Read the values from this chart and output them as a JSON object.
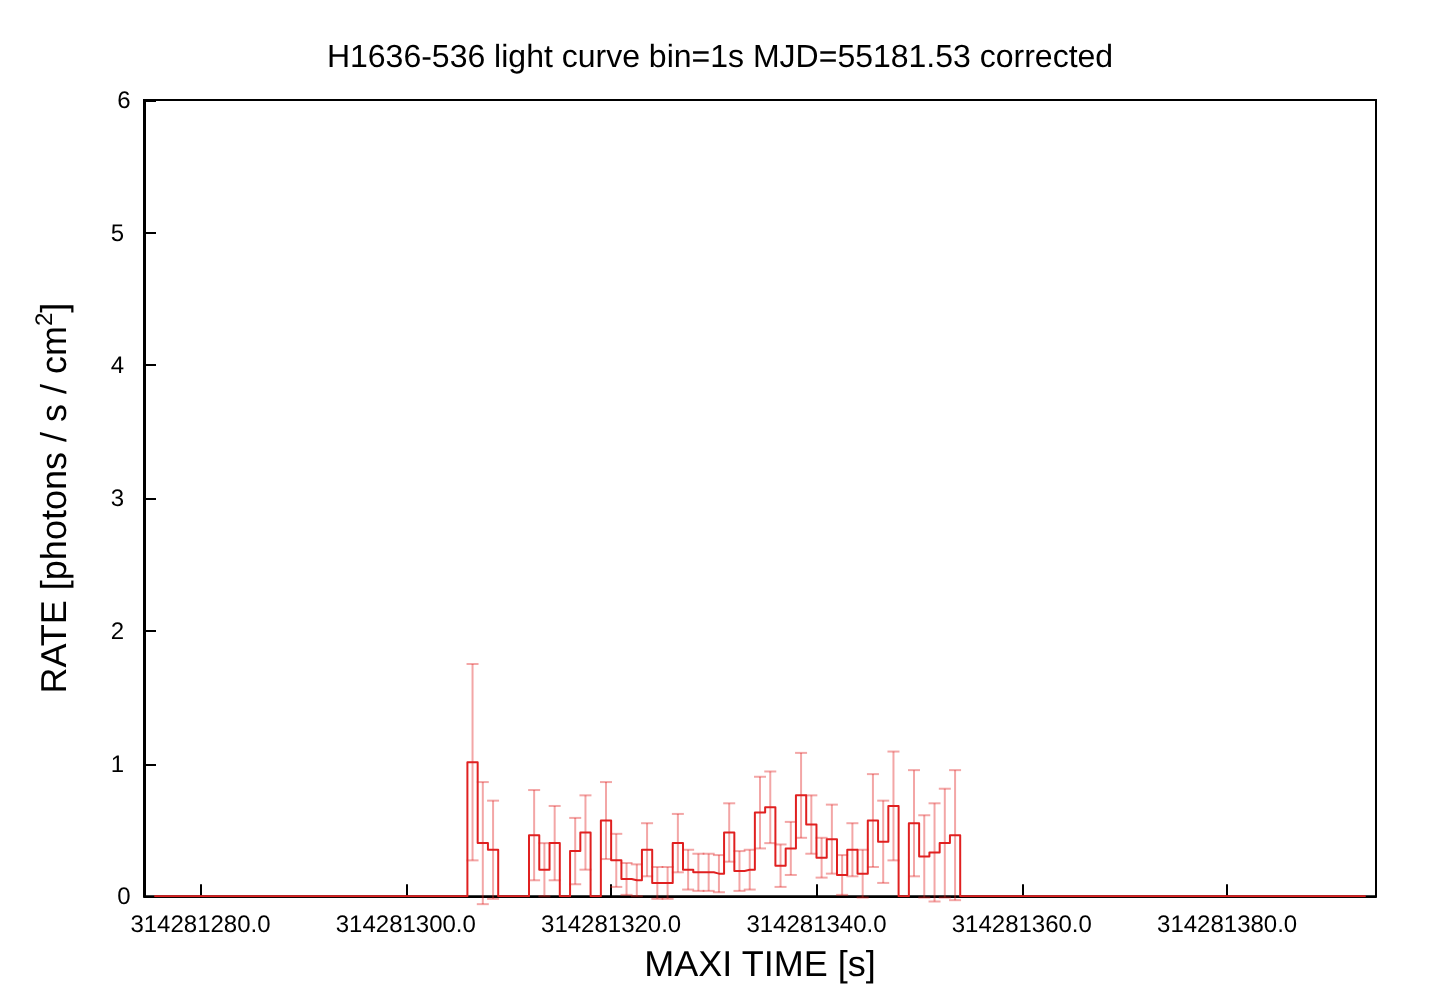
{
  "chart_data": {
    "type": "step",
    "title": "H1636-536 light curve bin=1s MJD=55181.53 corrected",
    "xlabel": "MAXI TIME [s]",
    "ylabel": "RATE [photons / s / cm$^{2}$]",
    "xlim": [
      314281274.5,
      314281394.5
    ],
    "xticks": [
      {
        "value": 314281280,
        "label": "314281280.0"
      },
      {
        "value": 314281300,
        "label": "314281300.0"
      },
      {
        "value": 314281320,
        "label": "314281320.0"
      },
      {
        "value": 314281340,
        "label": "314281340.0"
      },
      {
        "value": 314281360,
        "label": "314281360.0"
      },
      {
        "value": 314281380,
        "label": "314281380.0"
      }
    ],
    "ylim": [
      0,
      6
    ],
    "yticks": [
      0,
      1,
      2,
      3,
      4,
      5,
      6
    ],
    "grid": false,
    "x": [
      314281275.5,
      314281276.5,
      314281277.5,
      314281278.5,
      314281279.5,
      314281280.5,
      314281281.5,
      314281282.5,
      314281283.5,
      314281284.5,
      314281285.5,
      314281286.5,
      314281287.5,
      314281288.5,
      314281289.5,
      314281290.5,
      314281291.5,
      314281292.5,
      314281293.5,
      314281294.5,
      314281295.5,
      314281296.5,
      314281297.5,
      314281298.5,
      314281299.5,
      314281300.5,
      314281301.5,
      314281302.5,
      314281303.5,
      314281304.5,
      314281305.5,
      314281306.5,
      314281307.5,
      314281308.5,
      314281309.5,
      314281310.5,
      314281311.5,
      314281312.5,
      314281313.5,
      314281314.5,
      314281315.5,
      314281316.5,
      314281317.5,
      314281318.5,
      314281319.5,
      314281320.5,
      314281321.5,
      314281322.5,
      314281323.5,
      314281324.5,
      314281325.5,
      314281326.5,
      314281327.5,
      314281328.5,
      314281329.5,
      314281330.5,
      314281331.5,
      314281332.5,
      314281333.5,
      314281334.5,
      314281335.5,
      314281336.5,
      314281337.5,
      314281338.5,
      314281339.5,
      314281340.5,
      314281341.5,
      314281342.5,
      314281343.5,
      314281344.5,
      314281345.5,
      314281346.5,
      314281347.5,
      314281348.5,
      314281349.5,
      314281350.5,
      314281351.5,
      314281352.5,
      314281353.5,
      314281354.5,
      314281355.5,
      314281356.5,
      314281357.5,
      314281358.5,
      314281359.5,
      314281360.5,
      314281361.5,
      314281362.5,
      314281363.5,
      314281364.5,
      314281365.5,
      314281366.5,
      314281367.5,
      314281368.5,
      314281369.5,
      314281370.5,
      314281371.5,
      314281372.5,
      314281373.5,
      314281374.5,
      314281375.5,
      314281376.5,
      314281377.5,
      314281378.5,
      314281379.5,
      314281380.5,
      314281381.5,
      314281382.5,
      314281383.5,
      314281384.5,
      314281385.5,
      314281386.5,
      314281387.5,
      314281388.5,
      314281389.5,
      314281390.5,
      314281391.5,
      314281392.5,
      314281393.5
    ],
    "series": [
      {
        "color": "#e02020",
        "values": [
          0,
          0,
          0,
          0,
          0,
          0,
          0,
          0,
          0,
          0,
          0,
          0,
          0,
          0,
          0,
          0,
          0,
          0,
          0,
          0,
          0,
          0,
          0,
          0,
          0,
          0,
          0,
          0,
          0,
          0,
          0,
          1.01,
          0.4,
          0.35,
          0,
          0,
          0,
          0.46,
          0.2,
          0.4,
          0,
          0.34,
          0.48,
          0,
          0.57,
          0.27,
          0.13,
          0.12,
          0.35,
          0.1,
          0.1,
          0.4,
          0.2,
          0.18,
          0.18,
          0.17,
          0.48,
          0.19,
          0.2,
          0.63,
          0.67,
          0.23,
          0.36,
          0.76,
          0.54,
          0.29,
          0.43,
          0.16,
          0.35,
          0.17,
          0.57,
          0.41,
          0.68,
          0,
          0.55,
          0.3,
          0.33,
          0.4,
          0.46,
          0,
          0,
          0,
          0,
          0,
          0,
          0,
          0,
          0,
          0,
          0,
          0,
          0,
          0,
          0,
          0,
          0,
          0,
          0,
          0,
          0,
          0,
          0,
          0,
          0,
          0,
          0,
          0,
          0,
          0,
          0,
          0,
          0,
          0,
          0,
          0,
          0,
          0,
          0,
          0
        ],
        "errors": [
          null,
          null,
          null,
          null,
          null,
          null,
          null,
          null,
          null,
          null,
          null,
          null,
          null,
          null,
          null,
          null,
          null,
          null,
          null,
          null,
          null,
          null,
          null,
          null,
          null,
          null,
          null,
          null,
          null,
          null,
          null,
          0.74,
          0.46,
          0.37,
          null,
          null,
          null,
          0.34,
          0.2,
          0.28,
          null,
          0.25,
          0.28,
          null,
          0.29,
          0.2,
          0.12,
          0.12,
          0.2,
          0.12,
          0.12,
          0.22,
          0.15,
          0.14,
          0.14,
          0.14,
          0.22,
          0.15,
          0.15,
          0.27,
          0.27,
          0.16,
          0.2,
          0.32,
          0.22,
          0.15,
          0.26,
          0.15,
          0.2,
          0.18,
          0.35,
          0.31,
          0.41,
          null,
          0.4,
          0.31,
          0.37,
          0.41,
          0.49,
          null,
          null,
          null,
          null,
          null,
          null,
          null,
          null,
          null,
          null,
          null,
          null,
          null,
          null,
          null,
          null,
          null,
          null,
          null,
          null,
          null,
          null,
          null,
          null,
          null,
          null,
          null,
          null,
          null,
          null,
          null,
          null,
          null,
          null,
          null,
          null,
          null,
          null,
          null,
          null
        ]
      }
    ]
  }
}
